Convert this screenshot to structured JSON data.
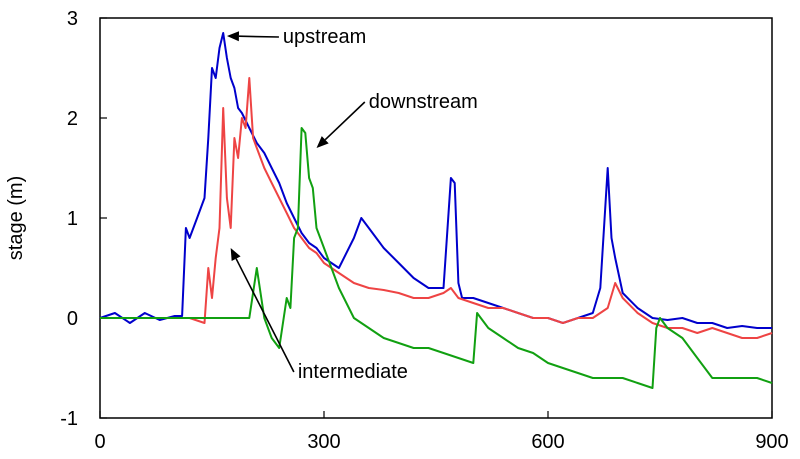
{
  "chart_data": {
    "type": "line",
    "title": "",
    "xlabel": "",
    "ylabel": "stage (m)",
    "xlim": [
      0,
      900
    ],
    "ylim": [
      -1,
      3
    ],
    "xticks": [
      0,
      300,
      600,
      900
    ],
    "yticks": [
      3,
      2,
      1,
      0,
      -1
    ],
    "grid": false,
    "legend": "none",
    "series": [
      {
        "color": "#0000cc",
        "x": [
          0,
          20,
          40,
          60,
          80,
          100,
          110,
          115,
          120,
          130,
          140,
          145,
          150,
          155,
          160,
          165,
          170,
          175,
          180,
          185,
          190,
          200,
          210,
          220,
          230,
          240,
          250,
          260,
          270,
          280,
          290,
          300,
          320,
          340,
          350,
          360,
          380,
          400,
          420,
          440,
          460,
          470,
          475,
          480,
          485,
          500,
          520,
          540,
          560,
          580,
          600,
          620,
          640,
          660,
          670,
          680,
          685,
          690,
          700,
          720,
          740,
          760,
          780,
          800,
          820,
          840,
          860,
          880,
          900
        ],
        "y": [
          0.0,
          0.05,
          -0.05,
          0.05,
          -0.02,
          0.02,
          0.02,
          0.9,
          0.8,
          1.0,
          1.2,
          1.8,
          2.5,
          2.4,
          2.7,
          2.85,
          2.6,
          2.4,
          2.3,
          2.1,
          2.05,
          1.9,
          1.75,
          1.65,
          1.5,
          1.35,
          1.15,
          1.0,
          0.85,
          0.75,
          0.7,
          0.6,
          0.5,
          0.8,
          1.0,
          0.9,
          0.7,
          0.55,
          0.4,
          0.3,
          0.3,
          1.4,
          1.35,
          0.35,
          0.2,
          0.2,
          0.15,
          0.1,
          0.05,
          0.0,
          0.0,
          -0.05,
          0.0,
          0.05,
          0.3,
          1.5,
          0.8,
          0.6,
          0.25,
          0.1,
          0.0,
          -0.02,
          0.0,
          -0.05,
          -0.05,
          -0.1,
          -0.08,
          -0.1,
          -0.1
        ]
      },
      {
        "color": "#ee4444",
        "x": [
          0,
          40,
          80,
          120,
          140,
          145,
          150,
          155,
          160,
          165,
          170,
          175,
          180,
          185,
          190,
          195,
          200,
          205,
          210,
          220,
          230,
          240,
          250,
          260,
          270,
          280,
          290,
          300,
          320,
          340,
          360,
          380,
          400,
          420,
          440,
          460,
          470,
          480,
          500,
          520,
          540,
          560,
          580,
          600,
          620,
          640,
          660,
          680,
          690,
          700,
          720,
          740,
          760,
          780,
          800,
          820,
          840,
          860,
          880,
          900
        ],
        "y": [
          0.0,
          0.0,
          0.0,
          0.0,
          -0.05,
          0.5,
          0.2,
          0.6,
          0.9,
          2.1,
          1.2,
          0.9,
          1.8,
          1.6,
          2.0,
          1.9,
          2.4,
          1.8,
          1.7,
          1.5,
          1.35,
          1.2,
          1.05,
          0.9,
          0.8,
          0.7,
          0.65,
          0.55,
          0.45,
          0.35,
          0.3,
          0.28,
          0.25,
          0.2,
          0.2,
          0.25,
          0.3,
          0.2,
          0.15,
          0.1,
          0.1,
          0.05,
          0.0,
          0.0,
          -0.05,
          0.0,
          0.0,
          0.1,
          0.35,
          0.2,
          0.05,
          -0.05,
          -0.1,
          -0.1,
          -0.15,
          -0.1,
          -0.15,
          -0.2,
          -0.2,
          -0.15
        ]
      },
      {
        "color": "#11a011",
        "x": [
          0,
          40,
          80,
          120,
          160,
          200,
          210,
          220,
          230,
          240,
          250,
          255,
          260,
          265,
          270,
          275,
          280,
          285,
          290,
          300,
          320,
          340,
          360,
          380,
          400,
          420,
          440,
          460,
          480,
          500,
          505,
          510,
          520,
          540,
          560,
          580,
          600,
          620,
          640,
          660,
          680,
          700,
          720,
          740,
          745,
          750,
          760,
          780,
          800,
          820,
          840,
          860,
          880,
          900
        ],
        "y": [
          0.0,
          0.0,
          0.0,
          0.0,
          0.0,
          0.0,
          0.5,
          0.0,
          -0.2,
          -0.3,
          0.2,
          0.1,
          0.8,
          0.9,
          1.9,
          1.85,
          1.4,
          1.3,
          0.9,
          0.7,
          0.3,
          0.0,
          -0.1,
          -0.2,
          -0.25,
          -0.3,
          -0.3,
          -0.35,
          -0.4,
          -0.45,
          0.05,
          0.0,
          -0.1,
          -0.2,
          -0.3,
          -0.35,
          -0.45,
          -0.5,
          -0.55,
          -0.6,
          -0.6,
          -0.6,
          -0.65,
          -0.7,
          -0.1,
          0.0,
          -0.1,
          -0.2,
          -0.4,
          -0.6,
          -0.6,
          -0.6,
          -0.6,
          -0.65
        ]
      }
    ],
    "annotations": [
      {
        "text": "upstream",
        "arrow_x": 170,
        "arrow_y": 2.82,
        "label_x": 245,
        "label_y": 2.75
      },
      {
        "text": "downstream",
        "arrow_x": 290,
        "arrow_y": 1.7,
        "label_x": 360,
        "label_y": 2.1
      },
      {
        "text": "intermediate",
        "arrow_x": 175,
        "arrow_y": 0.7,
        "label_x": 265,
        "label_y": -0.6
      }
    ]
  }
}
